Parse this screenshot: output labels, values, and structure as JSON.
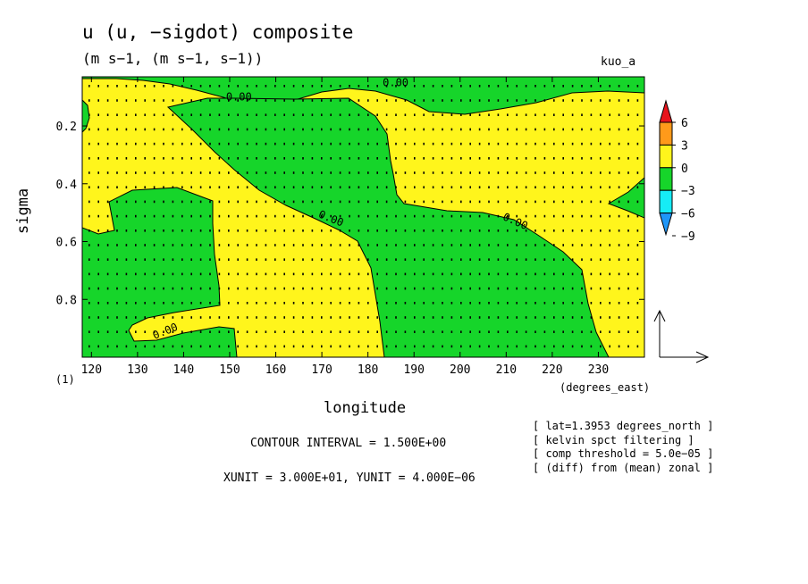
{
  "header": {
    "title": "u (u, −sigdot) composite",
    "subtitle": "(m s−1, (m s−1, s−1))",
    "tag": "kuo_a"
  },
  "footer": {
    "unit_note": "(1)",
    "x_units": "(degrees_east)",
    "contour_interval": "CONTOUR INTERVAL = 1.500E+00",
    "vector_units": "XUNIT = 3.000E+01, YUNIT = 4.000E−06",
    "notes": [
      "[ lat=1.3953 degrees_north ]",
      "[ kelvin spct filtering ]",
      "[ comp threshold = 5.0e−05 ]",
      "[ (diff) from (mean) zonal ]"
    ]
  },
  "chart_data": {
    "type": "heatmap",
    "title": "u (u, −sigdot) composite",
    "xlabel": "longitude",
    "ylabel": "sigma",
    "xlim": [
      118,
      240
    ],
    "ylim": [
      0.03,
      1.0
    ],
    "y_inverted": true,
    "x_ticks": [
      120,
      130,
      140,
      150,
      160,
      170,
      180,
      190,
      200,
      210,
      220,
      230
    ],
    "y_ticks": [
      0.2,
      0.4,
      0.6,
      0.8
    ],
    "contour_labels": [
      "0.00",
      "0.00",
      "0.00",
      "0.00",
      "0.00"
    ],
    "colorbar": {
      "ticks": [
        6,
        3,
        0,
        -3,
        -6,
        -9
      ],
      "colors": [
        "#e8141c",
        "#ff9a1a",
        "#fff51c",
        "#16d52a",
        "#16ecf6",
        "#1e96f8"
      ]
    },
    "regions": [
      {
        "sign": "positive",
        "color": "#fff51c",
        "description": "yellow (0 to 3)"
      },
      {
        "sign": "negative",
        "color": "#16d52a",
        "description": "green (-3 to 0)"
      }
    ],
    "grid": false
  }
}
